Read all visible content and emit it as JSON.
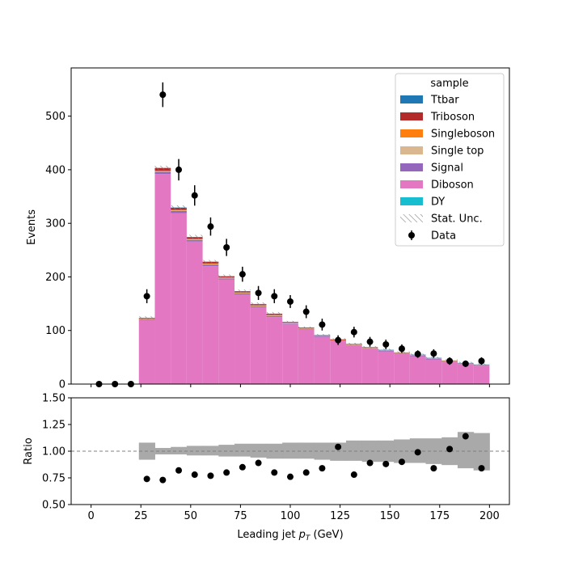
{
  "chart_data": [
    {
      "type": "bar",
      "stacked": true,
      "ylabel": "Events",
      "ylim": [
        0,
        590
      ],
      "yticks": [
        0,
        100,
        200,
        300,
        400,
        500
      ],
      "xlim": [
        -10,
        210
      ],
      "bin_edges": [
        24,
        32,
        40,
        48,
        56,
        64,
        72,
        80,
        88,
        96,
        104,
        112,
        120,
        128,
        136,
        144,
        152,
        160,
        168,
        176,
        184,
        192,
        200
      ],
      "legend": {
        "title": "sample",
        "position": "top-right",
        "entries": [
          "Ttbar",
          "Triboson",
          "Singleboson",
          "Single top",
          "Signal",
          "Diboson",
          "DY",
          "Stat. Unc.",
          "Data"
        ]
      },
      "series": [
        {
          "name": "Diboson",
          "color": "#e377c2",
          "values": [
            120,
            392,
            319,
            266,
            220,
            195,
            167,
            143,
            125,
            112,
            102,
            88,
            80,
            72,
            66,
            61,
            56,
            52,
            46,
            41,
            37,
            34
          ]
        },
        {
          "name": "Signal",
          "color": "#9467bd",
          "values": [
            1,
            4,
            4,
            3,
            3,
            2,
            2,
            2,
            2,
            1,
            1,
            1,
            1,
            1,
            1,
            1,
            1,
            1,
            1,
            1,
            0.5,
            0.5
          ]
        },
        {
          "name": "Single top",
          "color": "#dbb78f",
          "values": [
            0.5,
            1,
            1,
            1,
            1,
            1,
            1,
            1,
            1,
            1,
            0.5,
            0.5,
            0.5,
            0.5,
            0.5,
            0.5,
            0.5,
            0.5,
            0.5,
            0.5,
            0.5,
            0.5
          ]
        },
        {
          "name": "Singleboson",
          "color": "#ff7f0e",
          "values": [
            0.5,
            1,
            1,
            1,
            1,
            1,
            1,
            1,
            1,
            0.5,
            0.5,
            0.5,
            0.5,
            0.5,
            0.5,
            0.5,
            0.5,
            0.5,
            0.5,
            0.5,
            0.5,
            0.5
          ]
        },
        {
          "name": "Triboson",
          "color": "#b22a2a",
          "values": [
            1,
            5,
            4,
            3,
            3,
            2,
            2,
            2,
            2,
            1,
            1,
            1,
            1,
            0.5,
            0.5,
            0.5,
            0.5,
            0.5,
            0.5,
            0.5,
            0.5,
            0.5
          ]
        },
        {
          "name": "Ttbar",
          "color": "#1f77b4",
          "values": [
            0.5,
            0.5,
            0.5,
            0.5,
            0.5,
            0.5,
            0.5,
            0.5,
            0.5,
            0.5,
            0.5,
            0.5,
            0.5,
            0.5,
            0.5,
            0.5,
            0.5,
            0.5,
            0.5,
            0.5,
            0.5,
            0.5
          ]
        },
        {
          "name": "DY",
          "color": "#17becf",
          "values": [
            0,
            0,
            0,
            0,
            0,
            0,
            0,
            0,
            0,
            0,
            0,
            0,
            0,
            0,
            0,
            0,
            0,
            0,
            0,
            0,
            0,
            0
          ]
        }
      ],
      "stat_unc": [
        3,
        4,
        4,
        4,
        3,
        3,
        3,
        3,
        3,
        2,
        2,
        2,
        2,
        2,
        2,
        2,
        2,
        2,
        2,
        2,
        2,
        2
      ],
      "data": {
        "name": "Data",
        "x": [
          4,
          12,
          20,
          28,
          36,
          44,
          52,
          60,
          68,
          76,
          84,
          92,
          100,
          108,
          116,
          124,
          132,
          140,
          148,
          156,
          164,
          172,
          180,
          188,
          196
        ],
        "y": [
          0,
          0,
          0,
          164,
          540,
          400,
          352,
          294,
          255,
          205,
          170,
          164,
          154,
          135,
          111,
          82,
          97,
          79,
          74,
          66,
          56,
          57,
          43,
          38,
          43
        ],
        "yerr": [
          0,
          0,
          0,
          13,
          23,
          20,
          19,
          17,
          16,
          14,
          13,
          13,
          12,
          12,
          11,
          9,
          10,
          9,
          9,
          8,
          7,
          8,
          7,
          6,
          7
        ]
      }
    },
    {
      "type": "scatter",
      "xlabel": "Leading jet  p_T (GeV)",
      "xlabel_main": "Leading jet  ",
      "xlabel_var": "p",
      "xlabel_sub": "T",
      "xlabel_unit": " (GeV)",
      "ylabel": "Ratio",
      "ylim": [
        0.5,
        1.5
      ],
      "yticks": [
        "0.50",
        "0.75",
        "1.00",
        "1.25",
        "1.50"
      ],
      "xticks": [
        "0",
        "25",
        "50",
        "75",
        "100",
        "125",
        "150",
        "175",
        "200"
      ],
      "reference_line": 1.0,
      "unc_band": {
        "lo": [
          0.92,
          0.97,
          0.97,
          0.96,
          0.96,
          0.95,
          0.95,
          0.94,
          0.93,
          0.93,
          0.93,
          0.92,
          0.91,
          0.91,
          0.9,
          0.9,
          0.89,
          0.89,
          0.88,
          0.87,
          0.84,
          0.82
        ],
        "hi": [
          1.08,
          1.03,
          1.04,
          1.05,
          1.05,
          1.06,
          1.07,
          1.07,
          1.07,
          1.08,
          1.08,
          1.08,
          1.08,
          1.1,
          1.1,
          1.1,
          1.11,
          1.12,
          1.12,
          1.13,
          1.18,
          1.17
        ]
      },
      "x": [
        28,
        36,
        44,
        52,
        60,
        68,
        76,
        84,
        92,
        100,
        108,
        116,
        124,
        132,
        140,
        148,
        156,
        164,
        172,
        180,
        188,
        196
      ],
      "y": [
        0.74,
        0.73,
        0.82,
        0.78,
        0.77,
        0.8,
        0.85,
        0.89,
        0.8,
        0.76,
        0.8,
        0.84,
        1.04,
        0.78,
        0.89,
        0.88,
        0.9,
        0.99,
        0.84,
        1.02,
        1.14,
        0.84
      ]
    }
  ]
}
